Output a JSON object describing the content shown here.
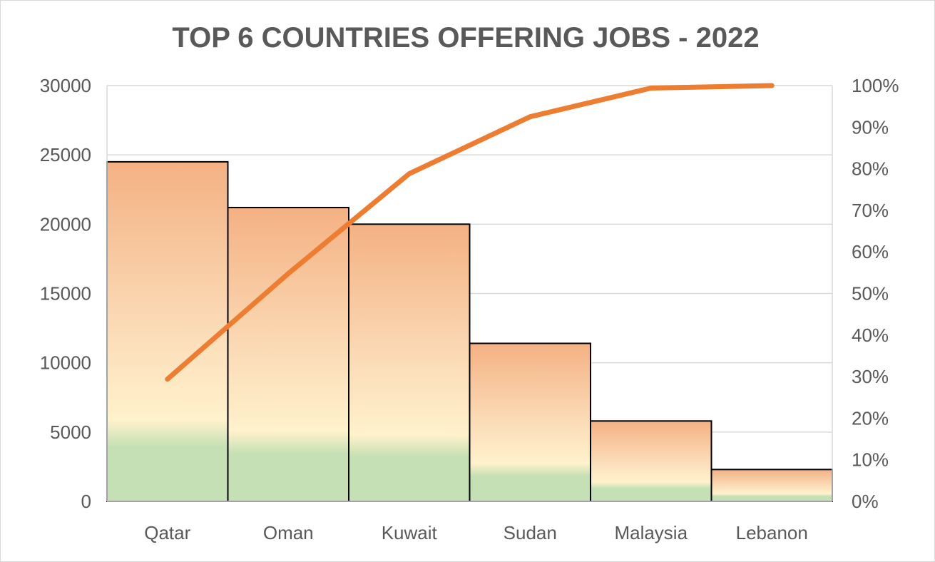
{
  "chart_data": {
    "type": "bar",
    "title": "TOP 6 COUNTRIES OFFERING JOBS - 2022",
    "categories": [
      "Qatar",
      "Oman",
      "Kuwait",
      "Sudan",
      "Malaysia",
      "Lebanon"
    ],
    "series": [
      {
        "values": [
          24500,
          21200,
          20000,
          11400,
          5800,
          2300
        ],
        "axis": "left",
        "color": "#f4b183"
      },
      {
        "values": [
          29.4,
          54.8,
          78.8,
          92.5,
          99.4,
          100
        ],
        "axis": "right",
        "type": "line",
        "color": "#ed7d31"
      }
    ],
    "ylim": [
      0,
      30000
    ],
    "y_ticks": [
      "0",
      "5000",
      "10000",
      "15000",
      "20000",
      "25000",
      "30000"
    ],
    "y2lim": [
      0,
      100
    ],
    "y2_ticks": [
      "0%",
      "10%",
      "20%",
      "30%",
      "40%",
      "50%",
      "60%",
      "70%",
      "80%",
      "90%",
      "100%"
    ],
    "xlabel": "",
    "ylabel": "",
    "grid": true,
    "legend": "none"
  }
}
